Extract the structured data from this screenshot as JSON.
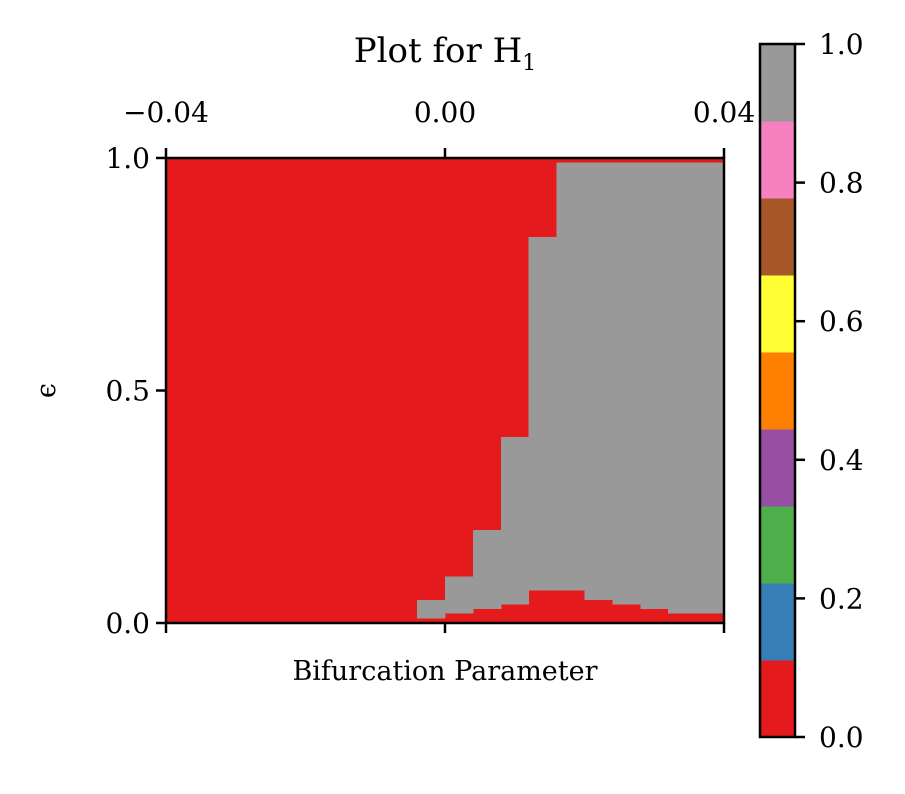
{
  "chart_data": [
    {
      "type": "heatmap",
      "title": "Plot for H",
      "title_subscript": "1",
      "xlabel": "Bifurcation Parameter",
      "ylabel": "ϵ",
      "xlim": [
        -0.04,
        0.04
      ],
      "ylim": [
        0.0,
        1.0
      ],
      "x_ticks": [
        -0.04,
        0.0,
        0.04
      ],
      "x_tick_labels": [
        "−0.04",
        "0.00",
        "0.04"
      ],
      "x_tick_position": "top",
      "y_ticks": [
        0.0,
        0.5,
        1.0
      ],
      "y_tick_labels": [
        "0.0",
        "0.5",
        "1.0"
      ],
      "background_value": 0.0,
      "regions": [
        {
          "x0": 0.016,
          "x1": 0.04,
          "y0": 0.07,
          "y1": 0.99,
          "value": 1.0
        },
        {
          "x0": 0.012,
          "x1": 0.016,
          "y0": 0.07,
          "y1": 0.83,
          "value": 1.0
        },
        {
          "x0": 0.008,
          "x1": 0.012,
          "y0": 0.04,
          "y1": 0.4,
          "value": 1.0
        },
        {
          "x0": 0.004,
          "x1": 0.008,
          "y0": 0.03,
          "y1": 0.2,
          "value": 1.0
        },
        {
          "x0": 0.0,
          "x1": 0.004,
          "y0": 0.02,
          "y1": 0.1,
          "value": 1.0
        },
        {
          "x0": -0.004,
          "x1": 0.0,
          "y0": 0.01,
          "y1": 0.05,
          "value": 1.0
        },
        {
          "x0": 0.02,
          "x1": 0.024,
          "y0": 0.05,
          "y1": 0.07,
          "value": 1.0
        },
        {
          "x0": 0.024,
          "x1": 0.028,
          "y0": 0.04,
          "y1": 0.07,
          "value": 1.0
        },
        {
          "x0": 0.028,
          "x1": 0.032,
          "y0": 0.03,
          "y1": 0.07,
          "value": 1.0
        },
        {
          "x0": 0.032,
          "x1": 0.04,
          "y0": 0.02,
          "y1": 0.07,
          "value": 1.0
        }
      ],
      "colorbar": {
        "range": [
          0.0,
          1.0
        ],
        "colors": [
          "#e41a1c",
          "#377eb8",
          "#4daf4a",
          "#984ea3",
          "#ff7f00",
          "#ffff33",
          "#a65628",
          "#f781bf",
          "#999999"
        ],
        "ticks": [
          0.0,
          0.2,
          0.4,
          0.6,
          0.8,
          1.0
        ],
        "tick_labels": [
          "0.0",
          "0.2",
          "0.4",
          "0.6",
          "0.8",
          "1.0"
        ]
      }
    }
  ]
}
